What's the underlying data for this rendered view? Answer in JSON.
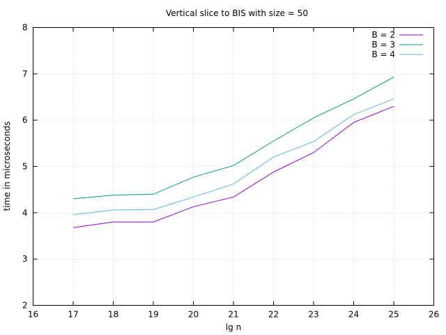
{
  "chart_data": {
    "type": "line",
    "title": "Vertical slice to BIS with size = 50",
    "xlabel": "lg n",
    "ylabel": "time in microseconds",
    "xlim": [
      16,
      26
    ],
    "ylim": [
      2,
      8
    ],
    "x_ticks": [
      16,
      17,
      18,
      19,
      20,
      21,
      22,
      23,
      24,
      25,
      26
    ],
    "y_ticks": [
      2,
      3,
      4,
      5,
      6,
      7,
      8
    ],
    "grid": true,
    "legend_position": "top-right",
    "x": [
      17,
      18,
      19,
      20,
      21,
      22,
      23,
      24,
      25
    ],
    "series": [
      {
        "name": "B = 2",
        "color": "#9400d3",
        "values": [
          3.68,
          3.8,
          3.8,
          4.13,
          4.34,
          4.88,
          5.3,
          5.95,
          6.3
        ]
      },
      {
        "name": "B = 3",
        "color": "#009e73",
        "values": [
          4.3,
          4.38,
          4.4,
          4.77,
          5.02,
          5.55,
          6.05,
          6.46,
          6.93
        ]
      },
      {
        "name": "B = 4",
        "color": "#56b4e9",
        "values": [
          3.96,
          4.06,
          4.07,
          4.34,
          4.62,
          5.2,
          5.54,
          6.12,
          6.46
        ]
      }
    ]
  }
}
